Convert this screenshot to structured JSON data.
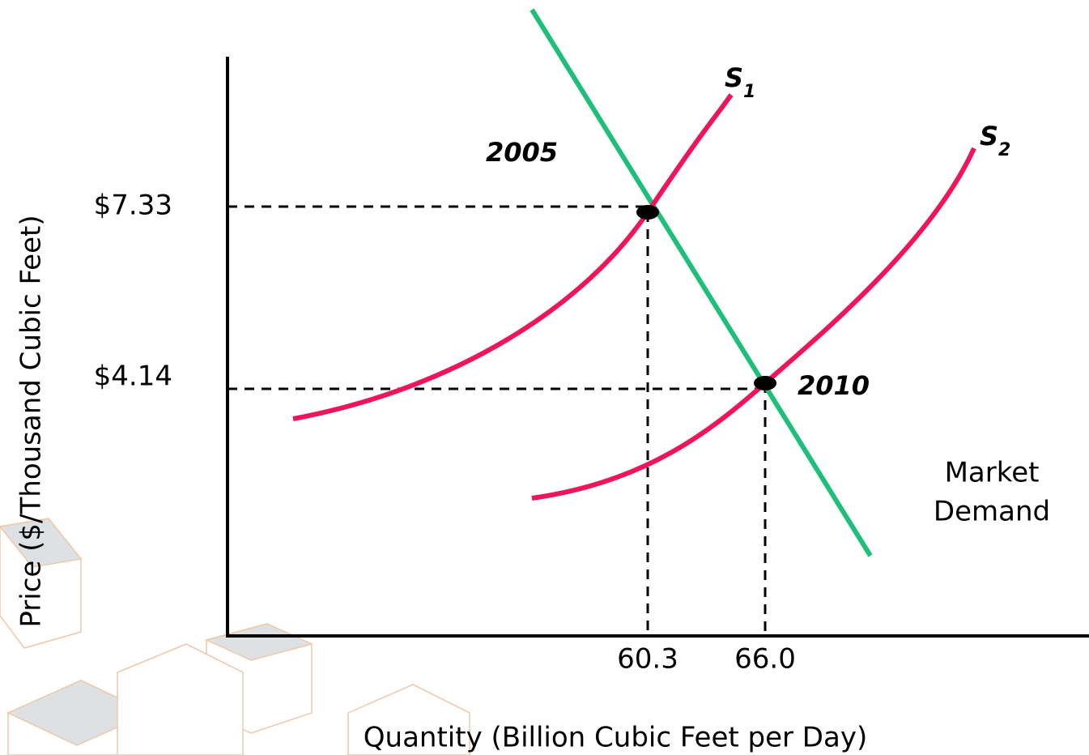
{
  "axes": {
    "y_label": "Price ($/Thousand Cubic Feet)",
    "x_label": "Quantity (Billion Cubic Feet per Day)"
  },
  "price_labels": [
    "$7.33",
    "$4.14"
  ],
  "quantity_labels": [
    "60.3",
    "66.0"
  ],
  "supply_curves": [
    {
      "letter": "S",
      "subscript": "1"
    },
    {
      "letter": "S",
      "subscript": "2"
    }
  ],
  "equilibria": [
    "2005",
    "2010"
  ],
  "demand_label": [
    "Market",
    "Demand"
  ]
}
